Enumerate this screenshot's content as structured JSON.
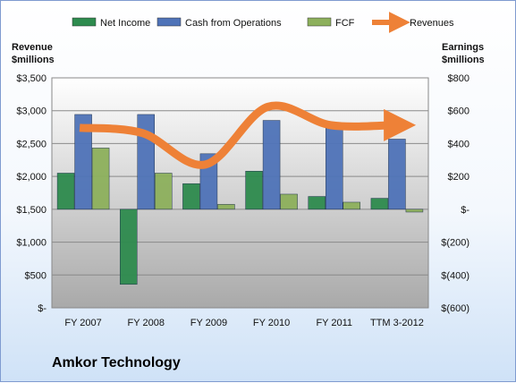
{
  "chart_data": {
    "type": "bar",
    "title": "",
    "categories": [
      "FY 2007",
      "FY 2008",
      "FY 2009",
      "FY 2010",
      "FY 2011",
      "TTM 3-2012"
    ],
    "series": [
      {
        "name": "Net Income",
        "type": "bar",
        "axis": "right",
        "color": "#2e8b4e",
        "values": [
          220,
          -457,
          156,
          232,
          78,
          67
        ]
      },
      {
        "name": "Cash from Operations",
        "type": "bar",
        "axis": "right",
        "color": "#4f73b8",
        "values": [
          577,
          577,
          338,
          541,
          514,
          427
        ]
      },
      {
        "name": "FCF",
        "type": "bar",
        "axis": "right",
        "color": "#8db05c",
        "values": [
          373,
          220,
          30,
          92,
          43,
          -17
        ]
      },
      {
        "name": "Revenues",
        "type": "line",
        "axis": "left",
        "color": "#ee8137",
        "values": [
          2740,
          2660,
          2180,
          3060,
          2780,
          2780
        ]
      }
    ],
    "left_axis": {
      "label_line1": "Revenue",
      "label_line2": "$millions",
      "ylim": [
        0,
        3500
      ],
      "ticks": [
        "$3,500",
        "$3,000",
        "$2,500",
        "$2,000",
        "$1,500",
        "$1,000",
        "$500",
        "$-"
      ]
    },
    "right_axis": {
      "label_line1": "Earnings",
      "label_line2": "$millions",
      "ylim": [
        -600,
        800
      ],
      "ticks": [
        "$800",
        "$600",
        "$400",
        "$200",
        "$-",
        "$(200)",
        "$(400)",
        "$(600)"
      ]
    },
    "legend_position": "top",
    "grid": true
  },
  "company": "Amkor Technology",
  "colors": {
    "plot_top": "#ffffff",
    "plot_bottom": "#a9a9a9",
    "gridline": "#8a8a8a"
  }
}
